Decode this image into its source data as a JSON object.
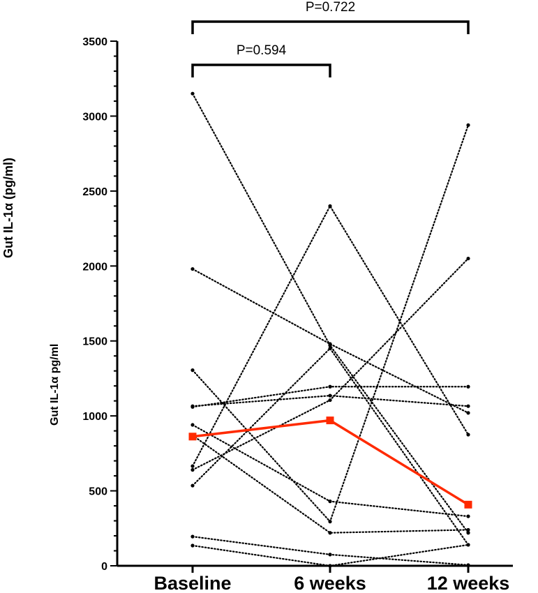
{
  "outer_ylabel": "Gut IL-1α (pg/ml)",
  "colors": {
    "axis": "#000000",
    "individual": "#000000",
    "mean": "#ff2a00"
  },
  "chart_data": {
    "type": "line",
    "ylabel": "Gut IL-1α pg/ml",
    "categories": [
      "Baseline",
      "6 weeks",
      "12 weeks"
    ],
    "ylim": [
      0,
      3500
    ],
    "yticks": [
      0,
      500,
      1000,
      1500,
      2000,
      2500,
      3000,
      3500
    ],
    "grid": false,
    "individual_series": [
      [
        3150,
        1470,
        220
      ],
      [
        1980,
        1480,
        1020
      ],
      [
        1305,
        295,
        2940
      ],
      [
        1060,
        1195,
        1195
      ],
      [
        1065,
        1135,
        1065
      ],
      [
        940,
        430,
        330
      ],
      [
        870,
        220,
        240
      ],
      [
        665,
        2400,
        875
      ],
      [
        640,
        1105,
        2050
      ],
      [
        535,
        1450,
        140
      ],
      [
        195,
        75,
        5
      ],
      [
        135,
        0,
        140
      ]
    ],
    "mean_series": {
      "values": [
        862,
        970,
        408
      ]
    },
    "annotations": [
      {
        "from": "Baseline",
        "to": "6 weeks",
        "label": "P=0.594"
      },
      {
        "from": "Baseline",
        "to": "12 weeks",
        "label": "P=0.722"
      }
    ]
  }
}
